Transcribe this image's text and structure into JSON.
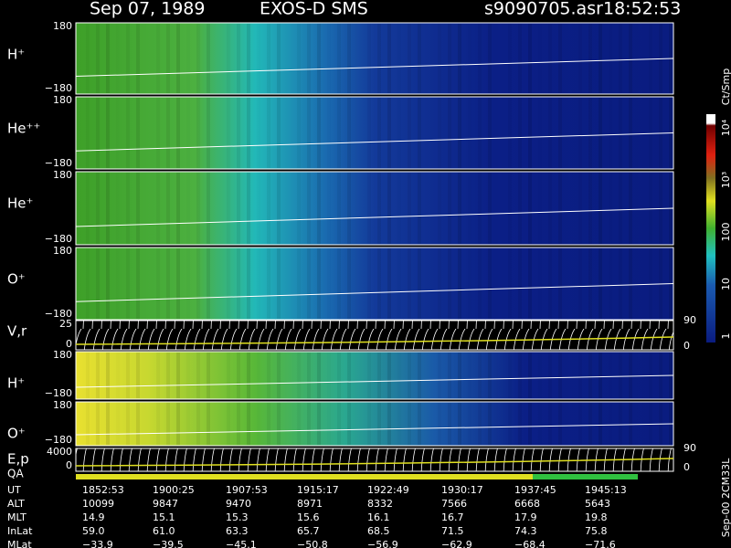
{
  "header": {
    "date": "Sep 07, 1989",
    "instrument": "EXOS-D SMS",
    "file": "s9090705.asr",
    "time": "18:52:53"
  },
  "panels": [
    {
      "label": "H⁺",
      "left_ticks": [
        "180",
        "−180"
      ]
    },
    {
      "label": "He⁺⁺",
      "left_ticks": [
        "180",
        "−180"
      ]
    },
    {
      "label": "He⁺",
      "left_ticks": [
        "180",
        "−180"
      ]
    },
    {
      "label": "O⁺",
      "left_ticks": [
        "180",
        "−180"
      ]
    },
    {
      "label": "V,r",
      "left_ticks": [
        "25",
        "0"
      ],
      "right_ticks": [
        "90",
        "0"
      ]
    },
    {
      "label": "H⁺",
      "left_ticks": [
        "180",
        "−180"
      ]
    },
    {
      "label": "O⁺",
      "left_ticks": [
        "180",
        "−180"
      ]
    },
    {
      "label": "E,p",
      "left_ticks": [
        "4000",
        "0"
      ],
      "right_ticks": [
        "90",
        "0"
      ]
    }
  ],
  "qa_label": "QA",
  "colorbar": {
    "unit": "Ct/Smp",
    "labels": [
      "10⁴",
      "10³",
      "100",
      "10",
      "1"
    ]
  },
  "footer_id": "Sep-00 2CM33L",
  "table": {
    "rows": [
      [
        "UT",
        "1852:53",
        "1900:25",
        "1907:53",
        "1915:17",
        "1922:49",
        "1930:17",
        "1937:45",
        "1945:13"
      ],
      [
        "ALT",
        "10099",
        "9847",
        "9470",
        "8971",
        "8332",
        "7566",
        "6668",
        "5643"
      ],
      [
        "MLT",
        "14.9",
        "15.1",
        "15.3",
        "15.6",
        "16.1",
        "16.7",
        "17.9",
        "19.8"
      ],
      [
        "InLat",
        "59.0",
        "61.0",
        "63.3",
        "65.7",
        "68.5",
        "71.5",
        "74.3",
        "75.8"
      ],
      [
        "MLat",
        "−33.9",
        "−39.5",
        "−45.1",
        "−50.8",
        "−56.9",
        "−62.9",
        "−68.4",
        "−71.6"
      ]
    ]
  }
}
